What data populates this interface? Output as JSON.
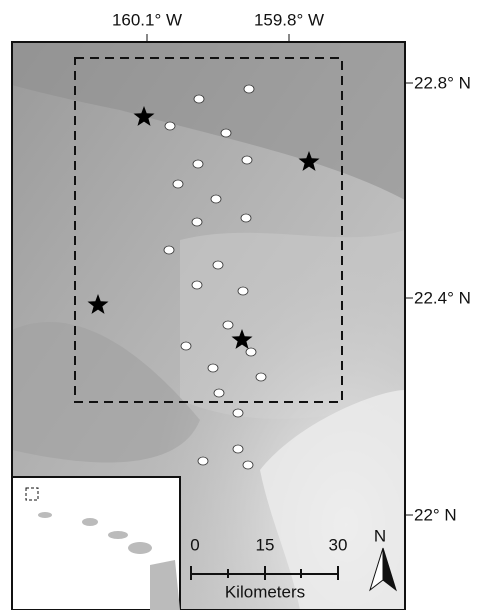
{
  "map": {
    "top_ticks": [
      "160.1° W",
      "159.8° W"
    ],
    "right_ticks": [
      "22.8° N",
      "22.4° N",
      "22° N"
    ],
    "scale_bar": {
      "labels": [
        "0",
        "15",
        "30"
      ],
      "unit": "Kilometers"
    },
    "north_arrow": "N"
  }
}
